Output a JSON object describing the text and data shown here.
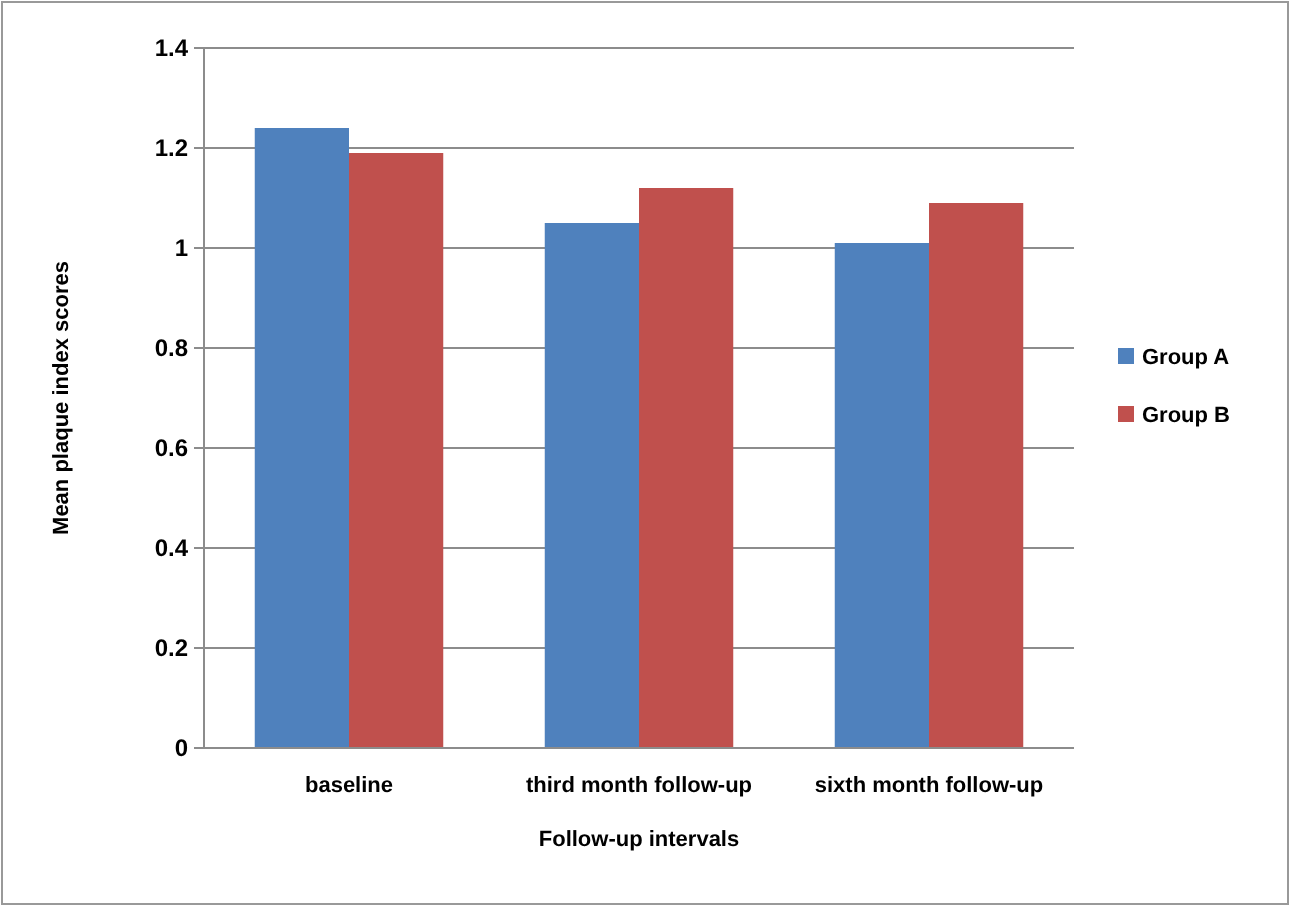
{
  "chart_data": {
    "type": "bar",
    "xlabel": "Follow-up intervals",
    "ylabel": "Mean plaque index scores",
    "categories": [
      "baseline",
      "third month follow-up",
      "sixth month follow-up"
    ],
    "series": [
      {
        "name": "Group A",
        "color": "#4f81bd",
        "values": [
          1.24,
          1.05,
          1.01
        ]
      },
      {
        "name": "Group B",
        "color": "#c0504d",
        "values": [
          1.19,
          1.12,
          1.09
        ]
      }
    ],
    "ylim": [
      0,
      1.4
    ],
    "yticks": [
      0,
      0.2,
      0.4,
      0.6,
      0.8,
      {
        "value": 1,
        "label": "1"
      },
      1.2,
      1.4
    ],
    "grid": "y",
    "legend": "right"
  }
}
